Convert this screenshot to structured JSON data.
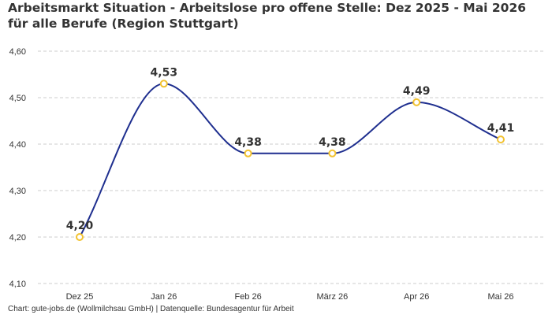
{
  "chart_data": {
    "type": "line",
    "title": "Arbeitsmarkt Situation - Arbeitslose pro offene Stelle: Dez 2025 - Mai 2026 für alle Berufe (Region Stuttgart)",
    "categories": [
      "Dez 25",
      "Jan 26",
      "Feb 26",
      "März 26",
      "Apr 26",
      "Mai 26"
    ],
    "series": [
      {
        "values": [
          4.2,
          4.53,
          4.38,
          4.38,
          4.49,
          4.41
        ]
      }
    ],
    "data_labels": [
      "4,20",
      "4,53",
      "4,38",
      "4,38",
      "4,49",
      "4,41"
    ],
    "y_ticks": [
      "4,10",
      "4,20",
      "4,30",
      "4,40",
      "4,50",
      "4,60"
    ],
    "ylim": [
      4.1,
      4.6
    ],
    "grid": "horizontal-dashed",
    "legend": "none",
    "colors": {
      "line": "#1f2f8f",
      "marker": "#f2c230",
      "grid": "#cccccc",
      "text": "#333333"
    }
  },
  "footer": "Chart: gute-jobs.de (Wollmilchsau GmbH) | Datenquelle: Bundesagentur für Arbeit"
}
